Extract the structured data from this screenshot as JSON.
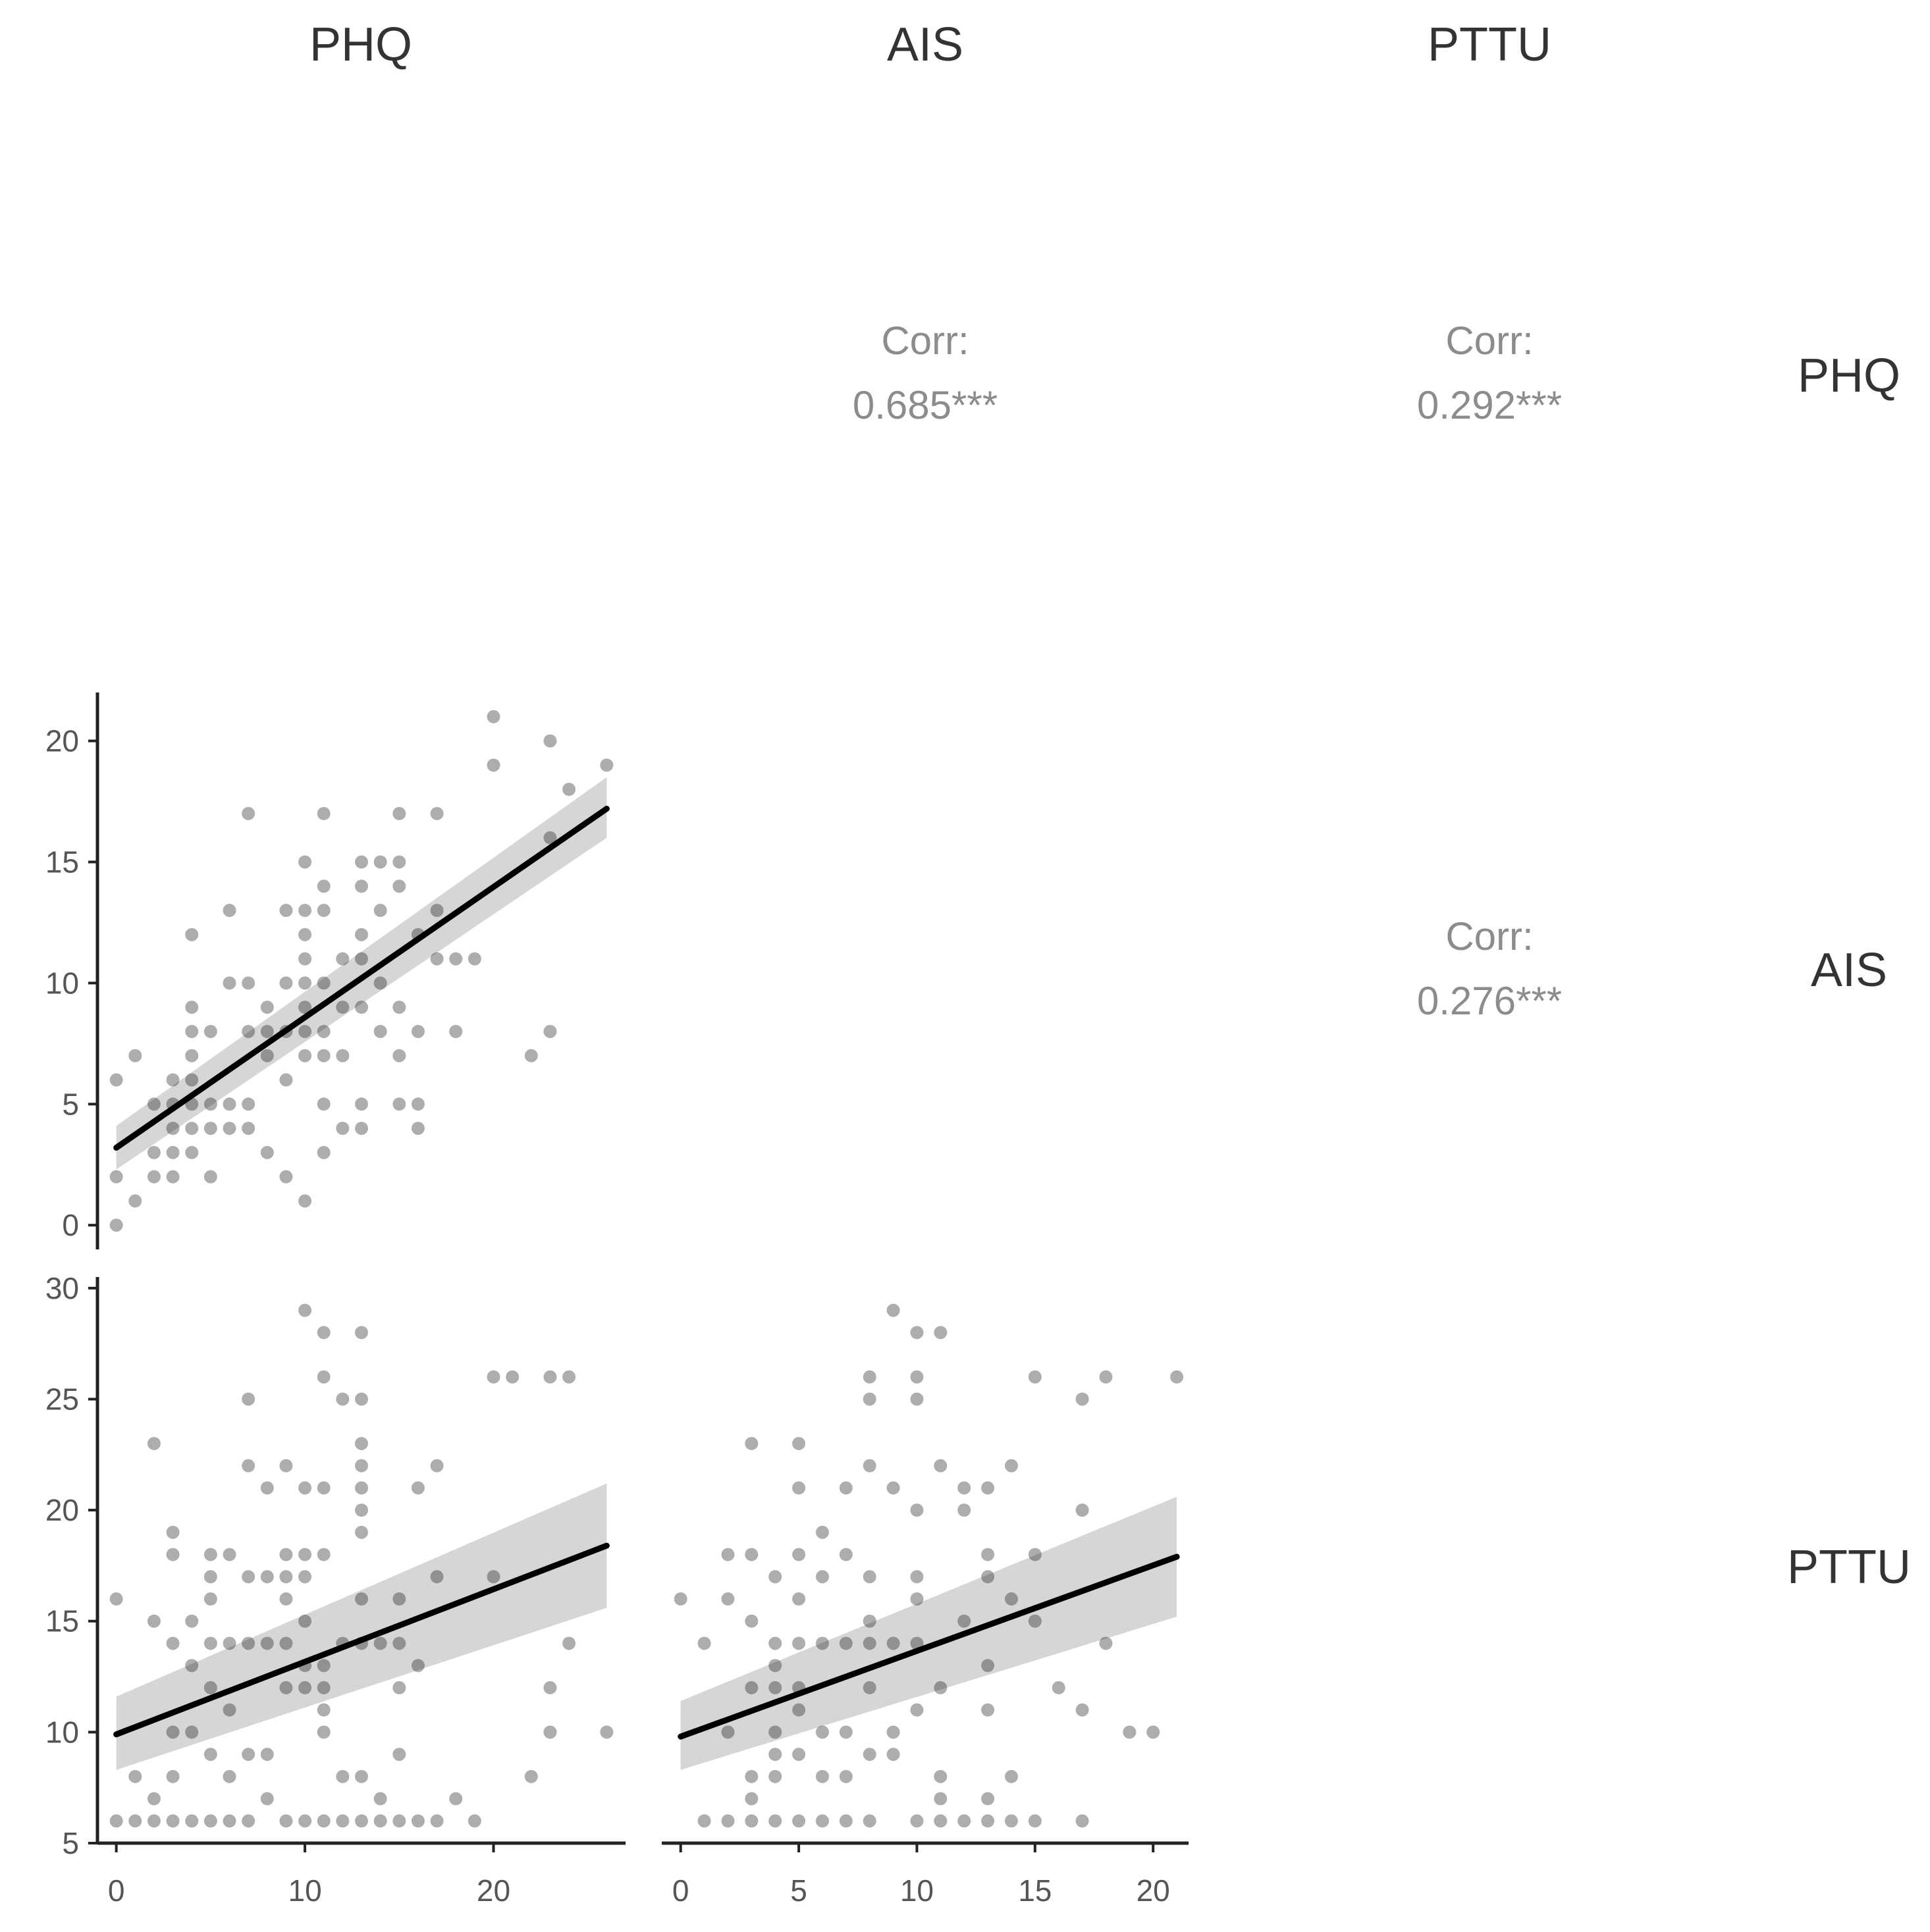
{
  "chart_data": {
    "type": "scatter",
    "variables": [
      "PHQ",
      "AIS",
      "PTTU"
    ],
    "column_headers": [
      "PHQ",
      "AIS",
      "PTTU"
    ],
    "row_labels": [
      "PHQ",
      "AIS",
      "PTTU"
    ],
    "correlations": [
      {
        "id": "phq-ais",
        "row": 0,
        "col": 1,
        "label": "Corr:",
        "value": "0.685***"
      },
      {
        "id": "phq-pttu",
        "row": 0,
        "col": 2,
        "label": "Corr:",
        "value": "0.292***"
      },
      {
        "id": "ais-pttu",
        "row": 1,
        "col": 2,
        "label": "Corr:",
        "value": "0.276***"
      }
    ],
    "scatter_panels": [
      {
        "id": "ais-vs-phq",
        "row": 1,
        "col": 0,
        "x_var": "PHQ",
        "y_var": "AIS",
        "xlim": [
          -1,
          27
        ],
        "ylim": [
          -1,
          22
        ],
        "x_ticks": [],
        "y_ticks": [
          0,
          5,
          10,
          15,
          20
        ],
        "fit": {
          "x0": 0,
          "y0": 3.2,
          "x1": 26,
          "y1": 17.2
        },
        "ci": {
          "lo0": 2.3,
          "hi0": 4.1,
          "lo1": 16.0,
          "hi1": 18.5
        },
        "points": [
          [
            0,
            0
          ],
          [
            0,
            2
          ],
          [
            0,
            6
          ],
          [
            1,
            1
          ],
          [
            1,
            7
          ],
          [
            2,
            2
          ],
          [
            2,
            3
          ],
          [
            2,
            5
          ],
          [
            3,
            2
          ],
          [
            3,
            3
          ],
          [
            3,
            4
          ],
          [
            3,
            5
          ],
          [
            3,
            6
          ],
          [
            4,
            3
          ],
          [
            4,
            4
          ],
          [
            4,
            5
          ],
          [
            4,
            6
          ],
          [
            4,
            7
          ],
          [
            4,
            8
          ],
          [
            4,
            9
          ],
          [
            4,
            12
          ],
          [
            5,
            2
          ],
          [
            5,
            4
          ],
          [
            5,
            5
          ],
          [
            5,
            8
          ],
          [
            6,
            4
          ],
          [
            6,
            5
          ],
          [
            6,
            10
          ],
          [
            6,
            13
          ],
          [
            7,
            4
          ],
          [
            7,
            5
          ],
          [
            7,
            8
          ],
          [
            7,
            10
          ],
          [
            7,
            17
          ],
          [
            8,
            3
          ],
          [
            8,
            7
          ],
          [
            8,
            8
          ],
          [
            8,
            9
          ],
          [
            9,
            2
          ],
          [
            9,
            6
          ],
          [
            9,
            8
          ],
          [
            9,
            10
          ],
          [
            9,
            13
          ],
          [
            10,
            1
          ],
          [
            10,
            7
          ],
          [
            10,
            8
          ],
          [
            10,
            9
          ],
          [
            10,
            10
          ],
          [
            10,
            11
          ],
          [
            10,
            12
          ],
          [
            10,
            13
          ],
          [
            10,
            15
          ],
          [
            11,
            3
          ],
          [
            11,
            5
          ],
          [
            11,
            7
          ],
          [
            11,
            8
          ],
          [
            11,
            10
          ],
          [
            11,
            13
          ],
          [
            11,
            14
          ],
          [
            11,
            17
          ],
          [
            12,
            4
          ],
          [
            12,
            7
          ],
          [
            12,
            9
          ],
          [
            12,
            11
          ],
          [
            13,
            4
          ],
          [
            13,
            5
          ],
          [
            13,
            9
          ],
          [
            13,
            11
          ],
          [
            13,
            12
          ],
          [
            13,
            14
          ],
          [
            13,
            15
          ],
          [
            14,
            8
          ],
          [
            14,
            10
          ],
          [
            14,
            13
          ],
          [
            14,
            15
          ],
          [
            15,
            5
          ],
          [
            15,
            7
          ],
          [
            15,
            9
          ],
          [
            15,
            14
          ],
          [
            15,
            15
          ],
          [
            15,
            17
          ],
          [
            16,
            4
          ],
          [
            16,
            5
          ],
          [
            16,
            8
          ],
          [
            16,
            12
          ],
          [
            17,
            11
          ],
          [
            17,
            13
          ],
          [
            17,
            17
          ],
          [
            18,
            8
          ],
          [
            18,
            11
          ],
          [
            19,
            11
          ],
          [
            20,
            19
          ],
          [
            20,
            21
          ],
          [
            22,
            7
          ],
          [
            23,
            8
          ],
          [
            23,
            16
          ],
          [
            23,
            20
          ],
          [
            24,
            18
          ],
          [
            26,
            19
          ]
        ]
      },
      {
        "id": "pttu-vs-phq",
        "row": 2,
        "col": 0,
        "x_var": "PHQ",
        "y_var": "PTTU",
        "xlim": [
          -1,
          27
        ],
        "ylim": [
          5,
          30.5
        ],
        "x_ticks": [
          0,
          10,
          20
        ],
        "y_ticks": [
          5,
          10,
          15,
          20,
          25,
          30
        ],
        "fit": {
          "x0": 0,
          "y0": 9.9,
          "x1": 26,
          "y1": 18.4
        },
        "ci": {
          "lo0": 8.3,
          "hi0": 11.6,
          "lo1": 15.6,
          "hi1": 21.2
        },
        "points": [
          [
            0,
            6
          ],
          [
            0,
            16
          ],
          [
            1,
            6
          ],
          [
            1,
            8
          ],
          [
            2,
            6
          ],
          [
            2,
            7
          ],
          [
            2,
            15
          ],
          [
            2,
            23
          ],
          [
            3,
            6
          ],
          [
            3,
            8
          ],
          [
            3,
            10
          ],
          [
            3,
            14
          ],
          [
            3,
            18
          ],
          [
            3,
            19
          ],
          [
            4,
            6
          ],
          [
            4,
            10
          ],
          [
            4,
            13
          ],
          [
            4,
            15
          ],
          [
            5,
            6
          ],
          [
            5,
            9
          ],
          [
            5,
            12
          ],
          [
            5,
            14
          ],
          [
            5,
            16
          ],
          [
            5,
            17
          ],
          [
            5,
            18
          ],
          [
            6,
            6
          ],
          [
            6,
            8
          ],
          [
            6,
            11
          ],
          [
            6,
            14
          ],
          [
            6,
            18
          ],
          [
            7,
            6
          ],
          [
            7,
            9
          ],
          [
            7,
            14
          ],
          [
            7,
            17
          ],
          [
            7,
            22
          ],
          [
            7,
            25
          ],
          [
            8,
            7
          ],
          [
            8,
            9
          ],
          [
            8,
            14
          ],
          [
            8,
            17
          ],
          [
            8,
            21
          ],
          [
            9,
            6
          ],
          [
            9,
            12
          ],
          [
            9,
            14
          ],
          [
            9,
            16
          ],
          [
            9,
            17
          ],
          [
            9,
            18
          ],
          [
            9,
            22
          ],
          [
            10,
            6
          ],
          [
            10,
            12
          ],
          [
            10,
            13
          ],
          [
            10,
            15
          ],
          [
            10,
            17
          ],
          [
            10,
            18
          ],
          [
            10,
            21
          ],
          [
            10,
            29
          ],
          [
            11,
            6
          ],
          [
            11,
            10
          ],
          [
            11,
            11
          ],
          [
            11,
            12
          ],
          [
            11,
            13
          ],
          [
            11,
            18
          ],
          [
            11,
            21
          ],
          [
            11,
            26
          ],
          [
            11,
            28
          ],
          [
            12,
            6
          ],
          [
            12,
            8
          ],
          [
            12,
            14
          ],
          [
            12,
            25
          ],
          [
            13,
            6
          ],
          [
            13,
            8
          ],
          [
            13,
            14
          ],
          [
            13,
            16
          ],
          [
            13,
            19
          ],
          [
            13,
            20
          ],
          [
            13,
            21
          ],
          [
            13,
            22
          ],
          [
            13,
            23
          ],
          [
            13,
            25
          ],
          [
            13,
            28
          ],
          [
            14,
            6
          ],
          [
            14,
            7
          ],
          [
            14,
            14
          ],
          [
            15,
            6
          ],
          [
            15,
            9
          ],
          [
            15,
            12
          ],
          [
            15,
            14
          ],
          [
            15,
            16
          ],
          [
            16,
            6
          ],
          [
            16,
            13
          ],
          [
            16,
            21
          ],
          [
            17,
            6
          ],
          [
            17,
            17
          ],
          [
            17,
            22
          ],
          [
            18,
            7
          ],
          [
            19,
            6
          ],
          [
            20,
            17
          ],
          [
            20,
            26
          ],
          [
            21,
            26
          ],
          [
            22,
            8
          ],
          [
            23,
            10
          ],
          [
            23,
            12
          ],
          [
            23,
            26
          ],
          [
            24,
            14
          ],
          [
            24,
            26
          ],
          [
            26,
            10
          ]
        ]
      },
      {
        "id": "pttu-vs-ais",
        "row": 2,
        "col": 1,
        "x_var": "AIS",
        "y_var": "PTTU",
        "xlim": [
          -0.8,
          21.5
        ],
        "ylim": [
          5,
          30.5
        ],
        "x_ticks": [
          0,
          5,
          10,
          15,
          20
        ],
        "y_ticks": [],
        "fit": {
          "x0": 0,
          "y0": 9.8,
          "x1": 21,
          "y1": 17.9
        },
        "ci": {
          "lo0": 8.3,
          "hi0": 11.4,
          "lo1": 15.2,
          "hi1": 20.6
        },
        "points": [
          [
            0,
            16
          ],
          [
            1,
            6
          ],
          [
            1,
            14
          ],
          [
            2,
            6
          ],
          [
            2,
            10
          ],
          [
            2,
            16
          ],
          [
            2,
            18
          ],
          [
            3,
            6
          ],
          [
            3,
            7
          ],
          [
            3,
            8
          ],
          [
            3,
            12
          ],
          [
            3,
            15
          ],
          [
            3,
            18
          ],
          [
            3,
            23
          ],
          [
            4,
            6
          ],
          [
            4,
            8
          ],
          [
            4,
            9
          ],
          [
            4,
            10
          ],
          [
            4,
            12
          ],
          [
            4,
            13
          ],
          [
            4,
            14
          ],
          [
            4,
            17
          ],
          [
            5,
            6
          ],
          [
            5,
            9
          ],
          [
            5,
            11
          ],
          [
            5,
            12
          ],
          [
            5,
            14
          ],
          [
            5,
            16
          ],
          [
            5,
            18
          ],
          [
            5,
            21
          ],
          [
            5,
            23
          ],
          [
            6,
            6
          ],
          [
            6,
            8
          ],
          [
            6,
            10
          ],
          [
            6,
            14
          ],
          [
            6,
            17
          ],
          [
            6,
            19
          ],
          [
            7,
            6
          ],
          [
            7,
            8
          ],
          [
            7,
            10
          ],
          [
            7,
            14
          ],
          [
            7,
            18
          ],
          [
            7,
            21
          ],
          [
            8,
            6
          ],
          [
            8,
            9
          ],
          [
            8,
            12
          ],
          [
            8,
            14
          ],
          [
            8,
            15
          ],
          [
            8,
            17
          ],
          [
            8,
            22
          ],
          [
            8,
            25
          ],
          [
            8,
            26
          ],
          [
            9,
            9
          ],
          [
            9,
            10
          ],
          [
            9,
            14
          ],
          [
            9,
            21
          ],
          [
            9,
            29
          ],
          [
            10,
            6
          ],
          [
            10,
            11
          ],
          [
            10,
            14
          ],
          [
            10,
            16
          ],
          [
            10,
            17
          ],
          [
            10,
            20
          ],
          [
            10,
            25
          ],
          [
            10,
            26
          ],
          [
            10,
            28
          ],
          [
            11,
            6
          ],
          [
            11,
            7
          ],
          [
            11,
            8
          ],
          [
            11,
            12
          ],
          [
            11,
            22
          ],
          [
            11,
            28
          ],
          [
            12,
            6
          ],
          [
            12,
            15
          ],
          [
            12,
            20
          ],
          [
            12,
            21
          ],
          [
            13,
            6
          ],
          [
            13,
            7
          ],
          [
            13,
            11
          ],
          [
            13,
            13
          ],
          [
            13,
            17
          ],
          [
            13,
            18
          ],
          [
            13,
            21
          ],
          [
            14,
            6
          ],
          [
            14,
            8
          ],
          [
            14,
            16
          ],
          [
            14,
            22
          ],
          [
            15,
            6
          ],
          [
            15,
            15
          ],
          [
            15,
            18
          ],
          [
            15,
            26
          ],
          [
            16,
            12
          ],
          [
            17,
            6
          ],
          [
            17,
            11
          ],
          [
            17,
            20
          ],
          [
            17,
            25
          ],
          [
            18,
            14
          ],
          [
            18,
            26
          ],
          [
            19,
            10
          ],
          [
            20,
            10
          ],
          [
            21,
            26
          ]
        ]
      }
    ]
  }
}
